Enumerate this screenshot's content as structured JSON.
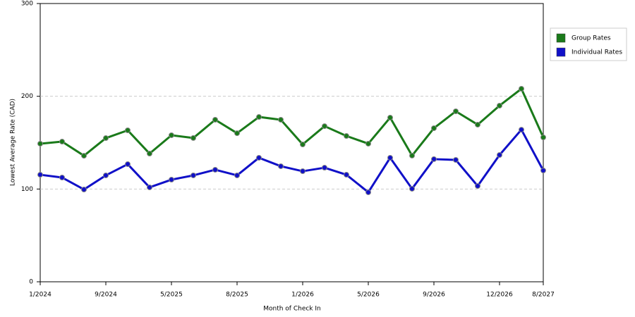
{
  "chart_data": {
    "type": "line",
    "x_label": "Month of Check In",
    "y_label": "Lowest Average Rate (CAD)",
    "categories": [
      "1/2024",
      null,
      null,
      "9/2024",
      null,
      null,
      "5/2025",
      null,
      null,
      "8/2025",
      null,
      null,
      "1/2026",
      null,
      null,
      "5/2026",
      null,
      null,
      "9/2026",
      null,
      null,
      "12/2026",
      null,
      "8/2027"
    ],
    "series": [
      {
        "name": "Group Rates",
        "color": "#1a7a1a",
        "values": [
          148.9,
          151.1,
          135.9,
          154.9,
          163.3,
          138.2,
          158,
          155,
          174.7,
          160.2,
          177.7,
          174.7,
          148.1,
          167.8,
          157.2,
          148.9,
          177,
          136,
          165.6,
          183.8,
          169.4,
          189.9,
          208.1,
          155.7
        ]
      },
      {
        "name": "Individual Rates",
        "color": "#1010c8",
        "values": [
          115.4,
          112.4,
          99.5,
          114.7,
          126.8,
          101.8,
          110.1,
          114.7,
          120.8,
          114.7,
          133.7,
          124.6,
          119.2,
          123,
          115.4,
          96.5,
          133.7,
          100.3,
          132.2,
          131.4,
          103.3,
          136.7,
          164,
          120
        ]
      }
    ],
    "ylim": [
      0,
      300
    ],
    "yticks": [
      0,
      100,
      200,
      300
    ],
    "grid": true,
    "legend": "right"
  }
}
